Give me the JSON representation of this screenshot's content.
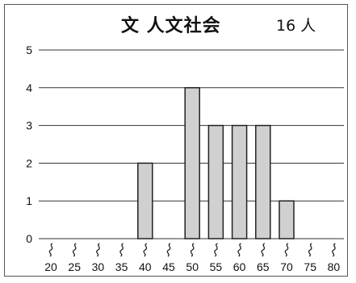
{
  "header": {
    "title": "文 人文社会",
    "count": "16 人"
  },
  "chart_data": {
    "type": "bar",
    "categories": [
      "20",
      "25",
      "30",
      "35",
      "40",
      "45",
      "50",
      "55",
      "60",
      "65",
      "70",
      "75",
      "80"
    ],
    "values": [
      0,
      0,
      0,
      0,
      2,
      0,
      4,
      3,
      3,
      3,
      1,
      0,
      0
    ],
    "y_ticks": [
      "0",
      "1",
      "2",
      "3",
      "4",
      "5"
    ],
    "ylim": [
      0,
      5
    ],
    "grid": true,
    "axis_break_marks": true,
    "bar_color": "#d0d0d0",
    "bar_stroke": "#222222"
  }
}
